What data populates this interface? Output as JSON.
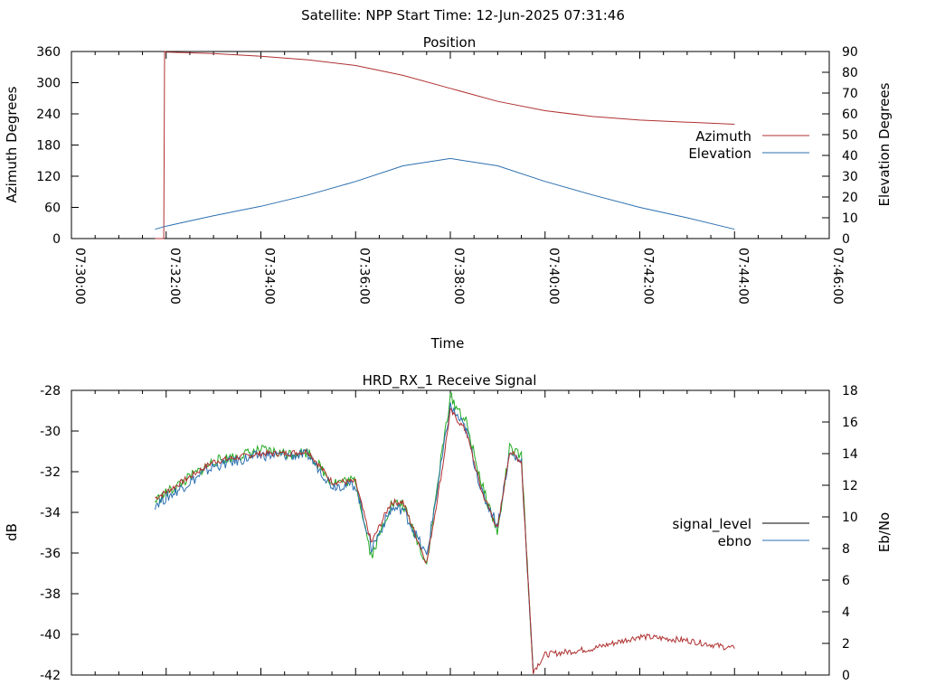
{
  "header": {
    "title": "Satellite: NPP    Start Time: 12-Jun-2025 07:31:46"
  },
  "chart_data": [
    {
      "type": "line",
      "title": "Position",
      "xlabel": "Time",
      "ylabel": "Azimuth Degrees",
      "y2label": "Elevation Degrees",
      "xlim": [
        "07:30:00",
        "07:46:00"
      ],
      "xtick_labels": [
        "07:30:00",
        "07:32:00",
        "07:34:00",
        "07:36:00",
        "07:38:00",
        "07:40:00",
        "07:42:00",
        "07:44:00",
        "07:46:00"
      ],
      "ylim": [
        0,
        360
      ],
      "ytick_labels": [
        "0",
        "60",
        "120",
        "180",
        "240",
        "300",
        "360"
      ],
      "y2lim": [
        0,
        90
      ],
      "y2tick_labels": [
        "0",
        "10",
        "20",
        "30",
        "40",
        "50",
        "60",
        "70",
        "80",
        "90"
      ],
      "legend": "right",
      "grid": false,
      "series": [
        {
          "name": "Azimuth",
          "axis": "left",
          "color": "#b03030",
          "x": [
            "07:31:46",
            "07:31:57",
            "07:31:58",
            "07:32:00",
            "07:33:00",
            "07:34:00",
            "07:35:00",
            "07:36:00",
            "07:37:00",
            "07:38:00",
            "07:39:00",
            "07:40:00",
            "07:41:00",
            "07:42:00",
            "07:43:00",
            "07:44:00"
          ],
          "values": [
            0,
            0,
            360,
            359,
            356,
            351,
            344,
            333,
            314,
            289,
            264,
            246,
            235,
            228,
            224,
            220
          ]
        },
        {
          "name": "Elevation",
          "axis": "right",
          "color": "#2b6fb0",
          "x": [
            "07:31:46",
            "07:32:00",
            "07:33:00",
            "07:34:00",
            "07:35:00",
            "07:36:00",
            "07:37:00",
            "07:38:00",
            "07:39:00",
            "07:40:00",
            "07:41:00",
            "07:42:00",
            "07:43:00",
            "07:44:00"
          ],
          "values": [
            4.5,
            6,
            11,
            15.5,
            21,
            27.5,
            35,
            38.5,
            35,
            27.5,
            21,
            15,
            10,
            4.5
          ]
        }
      ]
    },
    {
      "type": "line",
      "title": "HRD_RX_1 Receive Signal",
      "ylabel": "dB",
      "y2label": "Eb/No",
      "xlim": [
        "07:30:00",
        "07:46:00"
      ],
      "ylim": [
        -42,
        -28
      ],
      "ytick_labels": [
        "-42",
        "-40",
        "-38",
        "-36",
        "-34",
        "-32",
        "-30",
        "-28"
      ],
      "y2lim": [
        0,
        18
      ],
      "y2tick_labels": [
        "0",
        "2",
        "4",
        "6",
        "8",
        "10",
        "12",
        "14",
        "16",
        "18"
      ],
      "legend": "right",
      "grid": false,
      "series": [
        {
          "name": "signal_level",
          "axis": "left",
          "color": "#b03030",
          "x": [
            "07:31:46",
            "07:32:00",
            "07:33:00",
            "07:34:00",
            "07:34:30",
            "07:35:00",
            "07:35:30",
            "07:36:00",
            "07:36:20",
            "07:36:45",
            "07:37:00",
            "07:37:30",
            "07:37:50",
            "07:38:00",
            "07:38:20",
            "07:38:40",
            "07:39:00",
            "07:39:15",
            "07:39:30",
            "07:39:45",
            "07:40:00",
            "07:41:00",
            "07:42:00",
            "07:43:00",
            "07:44:00"
          ],
          "values": [
            -33.3,
            -33.0,
            -31.5,
            -31.1,
            -31.1,
            -31.0,
            -32.5,
            -32.5,
            -35.5,
            -33.5,
            -33.5,
            -36.5,
            -31.8,
            -29.0,
            -30.0,
            -33.0,
            -34.8,
            -31.0,
            -31.5,
            -41.8,
            -41.0,
            -40.7,
            -40.1,
            -40.3,
            -40.7
          ]
        },
        {
          "name": "ebno",
          "axis": "right",
          "color": "#2b6fb0",
          "x": [
            "07:31:46",
            "07:32:00",
            "07:33:00",
            "07:34:00",
            "07:34:30",
            "07:35:00",
            "07:35:30",
            "07:36:00",
            "07:36:20",
            "07:36:45",
            "07:37:00",
            "07:37:30",
            "07:37:50",
            "07:38:00",
            "07:38:20",
            "07:38:40",
            "07:39:00",
            "07:39:15",
            "07:39:30",
            "07:39:45"
          ],
          "values": [
            10.8,
            11.2,
            13.2,
            13.9,
            13.9,
            13.9,
            12.0,
            12.0,
            8.0,
            10.5,
            10.5,
            7.5,
            13.8,
            17.0,
            15.5,
            11.5,
            9.5,
            14.0,
            13.5,
            0.2
          ]
        },
        {
          "name": "",
          "axis": "right",
          "color": "#22aa22",
          "x": [
            "07:31:46",
            "07:32:00",
            "07:33:00",
            "07:34:00",
            "07:34:30",
            "07:35:00",
            "07:35:30",
            "07:36:00",
            "07:36:20",
            "07:36:45",
            "07:37:00",
            "07:37:30",
            "07:37:50",
            "07:38:00",
            "07:38:20",
            "07:38:40",
            "07:39:00",
            "07:39:15",
            "07:39:30",
            "07:39:45"
          ],
          "values": [
            11.0,
            11.5,
            13.5,
            14.2,
            14.0,
            14.1,
            12.2,
            12.3,
            7.5,
            10.8,
            10.8,
            7.0,
            14.3,
            17.6,
            16.0,
            12.0,
            9.0,
            14.3,
            13.8,
            0.1
          ]
        }
      ]
    }
  ]
}
